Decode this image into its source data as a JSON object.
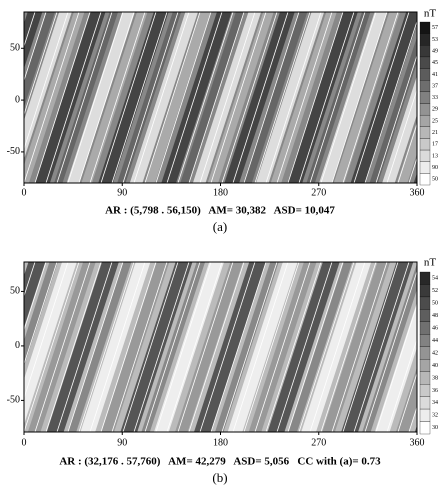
{
  "chart_data": [
    {
      "type": "map",
      "unit": "nT",
      "xlim": [
        0,
        360
      ],
      "xticks": [
        0,
        90,
        180,
        270,
        360
      ],
      "ylim": [
        -80,
        85
      ],
      "yticks": [
        -50,
        0,
        50
      ],
      "colorbar_labels": [
        "57",
        "53",
        "49",
        "45",
        "41",
        "37",
        "33",
        "29",
        "25",
        "21",
        "17",
        "13",
        "90",
        "50"
      ],
      "caption": "AR : (5,798 . 56,150)   AM= 30,382   ASD= 10,047",
      "panel": "(a)"
    },
    {
      "type": "map",
      "unit": "nT",
      "xlim": [
        0,
        360
      ],
      "xticks": [
        0,
        90,
        180,
        270,
        360
      ],
      "ylim": [
        -79,
        77
      ],
      "yticks": [
        -50,
        0,
        50
      ],
      "colorbar_labels": [
        "54",
        "52",
        "50",
        "48",
        "46",
        "44",
        "42",
        "40",
        "38",
        "36",
        "34",
        "32",
        "30"
      ],
      "caption": "AR : (32,176 . 57,760)   AM= 42,279   ASD= 5,056   CC with (a)= 0.73",
      "panel": "(b)"
    }
  ]
}
